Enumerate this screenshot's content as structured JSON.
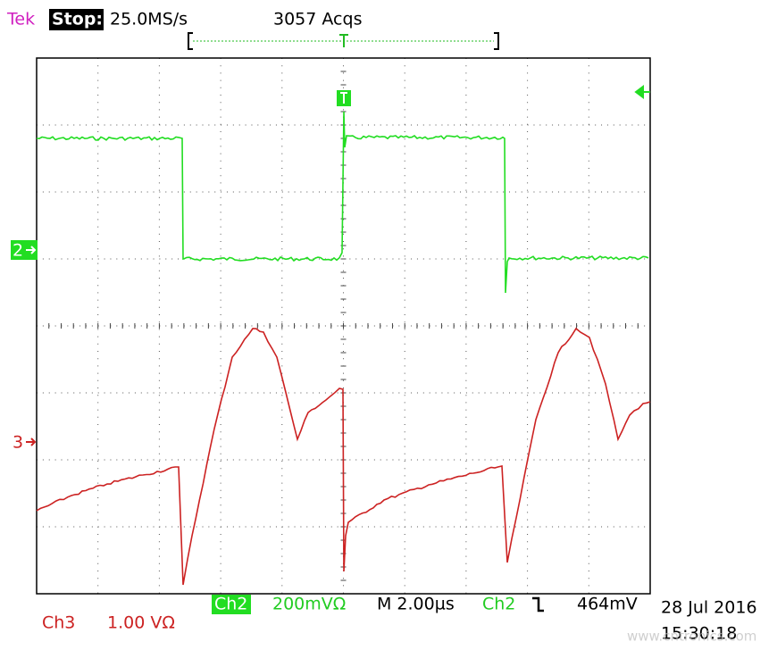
{
  "header": {
    "brand": "Tek",
    "status": "Stop:",
    "sample_rate": "25.0MS/s",
    "acquisitions": "3057 Acqs"
  },
  "channels": [
    {
      "marker": "2",
      "label": "Ch2",
      "scale": "200mVΩ"
    },
    {
      "marker": "3",
      "label": "Ch3",
      "scale": "1.00 VΩ"
    }
  ],
  "timebase": "M 2.00µs",
  "trigger": {
    "source": "Ch2",
    "level": "464mV"
  },
  "date": "28 Jul 2016",
  "time": "15:30:18",
  "watermark": "www.cntronics.com"
}
